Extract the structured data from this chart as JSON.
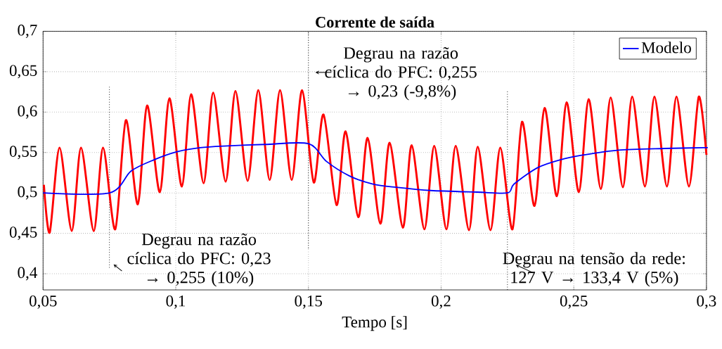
{
  "chart_data": {
    "type": "line",
    "title": "Corrente de saída",
    "xlabel": "Tempo [s]",
    "xlim": [
      0.05,
      0.3
    ],
    "ylim": [
      0.38,
      0.7
    ],
    "xticks": [
      {
        "value": 0.05,
        "label": "0,05"
      },
      {
        "value": 0.1,
        "label": "0,1"
      },
      {
        "value": 0.15,
        "label": "0,15"
      },
      {
        "value": 0.2,
        "label": "0,2"
      },
      {
        "value": 0.25,
        "label": "0,25"
      },
      {
        "value": 0.3,
        "label": "0,3"
      }
    ],
    "yticks": [
      {
        "value": 0.4,
        "label": "0,4"
      },
      {
        "value": 0.45,
        "label": "0,45"
      },
      {
        "value": 0.5,
        "label": "0,5"
      },
      {
        "value": 0.55,
        "label": "0,55"
      },
      {
        "value": 0.6,
        "label": "0,6"
      },
      {
        "value": 0.65,
        "label": "0,65"
      },
      {
        "value": 0.7,
        "label": "0,7"
      }
    ],
    "grid": true,
    "legend": "top right",
    "marker": "none",
    "line_style": "solid",
    "series": [
      {
        "color": "#ff0000",
        "x": [
          0.0503,
          0.0525,
          0.0562,
          0.0608,
          0.0643,
          0.0691,
          0.0726,
          0.0772,
          0.0812,
          0.0857,
          0.0892,
          0.094,
          0.0976,
          0.1023,
          0.1058,
          0.1105,
          0.1141,
          0.1188,
          0.1225,
          0.1271,
          0.1311,
          0.1354,
          0.1393,
          0.1437,
          0.1476,
          0.152,
          0.1557,
          0.1606,
          0.164,
          0.1688,
          0.1723,
          0.1771,
          0.1806,
          0.1856,
          0.1889,
          0.1937,
          0.1974,
          0.202,
          0.2055,
          0.2105,
          0.2138,
          0.2186,
          0.2223,
          0.2269,
          0.2305,
          0.2352,
          0.239,
          0.2436,
          0.2473,
          0.2519,
          0.2556,
          0.2602,
          0.2639,
          0.2685,
          0.272,
          0.2768,
          0.2804,
          0.2851,
          0.2887,
          0.2934,
          0.2971,
          0.3
        ],
        "values": [
          0.51,
          0.451,
          0.556,
          0.453,
          0.556,
          0.453,
          0.556,
          0.455,
          0.59,
          0.486,
          0.608,
          0.501,
          0.617,
          0.508,
          0.622,
          0.512,
          0.624,
          0.514,
          0.626,
          0.515,
          0.627,
          0.516,
          0.627,
          0.516,
          0.627,
          0.513,
          0.597,
          0.485,
          0.576,
          0.47,
          0.568,
          0.462,
          0.562,
          0.457,
          0.559,
          0.455,
          0.558,
          0.455,
          0.558,
          0.454,
          0.557,
          0.454,
          0.556,
          0.455,
          0.588,
          0.484,
          0.605,
          0.496,
          0.612,
          0.501,
          0.616,
          0.505,
          0.618,
          0.507,
          0.619,
          0.508,
          0.619,
          0.508,
          0.619,
          0.508,
          0.619,
          0.547
        ]
      },
      {
        "name": "Modelo",
        "color": "#0000ff",
        "x": [
          0.05,
          0.0751,
          0.0831,
          0.0918,
          0.1005,
          0.1092,
          0.118,
          0.1337,
          0.15,
          0.1568,
          0.1655,
          0.1743,
          0.183,
          0.1961,
          0.2135,
          0.225,
          0.2275,
          0.2362,
          0.2449,
          0.2537,
          0.2668,
          0.2842,
          0.299,
          0.3
        ],
        "values": [
          0.5,
          0.5,
          0.527,
          0.541,
          0.551,
          0.556,
          0.558,
          0.56,
          0.561,
          0.539,
          0.521,
          0.511,
          0.507,
          0.503,
          0.501,
          0.5,
          0.511,
          0.531,
          0.541,
          0.547,
          0.553,
          0.555,
          0.556,
          0.556
        ]
      }
    ],
    "ref_lines": [
      {
        "axis": "x",
        "value": 0.075,
        "line_style": "dotted"
      },
      {
        "axis": "x",
        "value": 0.15,
        "line_style": "dotted"
      },
      {
        "axis": "x",
        "value": 0.225,
        "line_style": "dotted"
      }
    ],
    "annotations": [
      "Degrau na razão cíclica do PFC: 0,23 → 0,255 (10%)",
      "Degrau na razão cíclica do PFC: 0,255 → 0,23 (-9,8%)",
      "Degrau na tensão da rede: 127 V → 133,4 V (5%)"
    ]
  }
}
